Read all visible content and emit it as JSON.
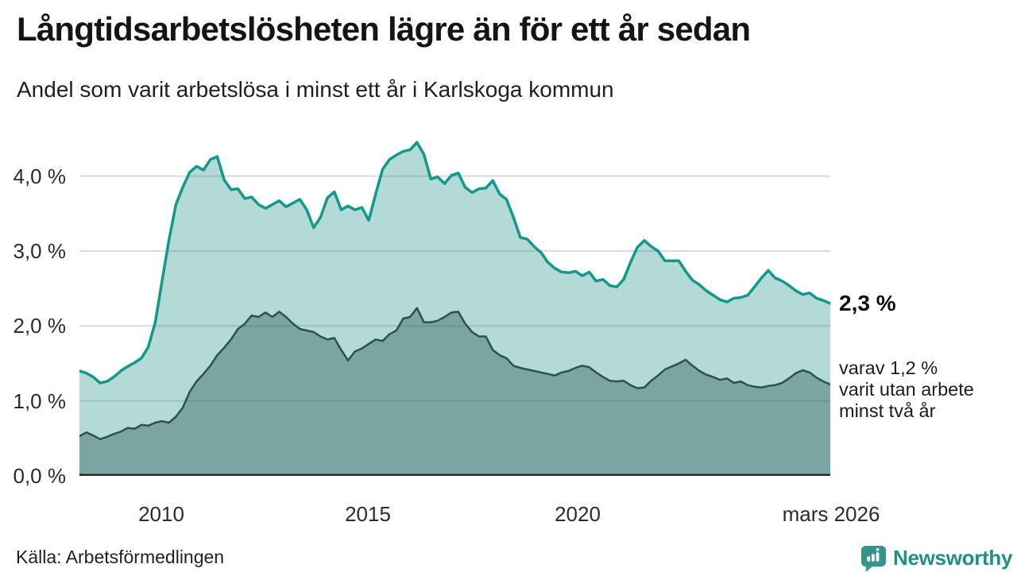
{
  "header": {
    "title": "Långtidsarbetslösheten lägre än för ett år sedan",
    "subtitle": "Andel som varit arbetslösa i minst ett år i Karlskoga kommun"
  },
  "annotation": {
    "latest_total_label": "2,3 %",
    "detail_lines": [
      "varav 1,2 %",
      "varit utan arbete",
      "minst två år"
    ]
  },
  "footer": {
    "source": "Källa: Arbetsförmedlingen",
    "logo_text": "Newsworthy"
  },
  "colors": {
    "accent_teal_line": "#12998b",
    "light_area_fill": "rgba(18,140,128,0.32)",
    "dark_slate_line": "#2f4f52",
    "dark_area_fill": "rgba(38,86,80,0.40)",
    "grid": "#dcdcdc",
    "axis": "#2b2b2b",
    "logo_icon": "#35948a",
    "logo_text": "#1d9186"
  },
  "chart_data": {
    "type": "area",
    "title": "Långtidsarbetslösheten lägre än för ett år sedan",
    "subtitle": "Andel som varit arbetslösa i minst ett år i Karlskoga kommun",
    "x_start_year": 2008.0,
    "x_end_year": 2026.17,
    "x_note": "values sampled every 2 months, read from plot",
    "ylim": [
      0,
      4.6
    ],
    "grid": "horizontal",
    "legend_position": "none",
    "yticks": [
      {
        "value": 0,
        "label": "0,0 %"
      },
      {
        "value": 1,
        "label": "1,0 %"
      },
      {
        "value": 2,
        "label": "2,0 %"
      },
      {
        "value": 3,
        "label": "3,0 %"
      },
      {
        "value": 4,
        "label": "4,0 %"
      }
    ],
    "xticks": [
      {
        "year": 2010,
        "label": "2010"
      },
      {
        "year": 2015,
        "label": "2015"
      },
      {
        "year": 2020,
        "label": "2020"
      },
      {
        "year": 2026.17,
        "label": "mars 2026"
      }
    ],
    "series": [
      {
        "name": "Andel arbetslösa minst ett år",
        "latest_value_pct": 2.3,
        "line_color": "#12998b",
        "line_width": 3.5,
        "fill_color": "rgba(18,140,128,0.32)",
        "values": [
          1.4,
          1.37,
          1.32,
          1.24,
          1.26,
          1.32,
          1.4,
          1.46,
          1.51,
          1.57,
          1.72,
          2.05,
          2.6,
          3.15,
          3.62,
          3.85,
          4.05,
          4.13,
          4.08,
          4.22,
          4.26,
          3.95,
          3.82,
          3.83,
          3.7,
          3.72,
          3.62,
          3.57,
          3.62,
          3.67,
          3.59,
          3.64,
          3.69,
          3.55,
          3.31,
          3.45,
          3.71,
          3.79,
          3.55,
          3.6,
          3.55,
          3.58,
          3.41,
          3.76,
          4.09,
          4.22,
          4.28,
          4.33,
          4.35,
          4.45,
          4.29,
          3.96,
          3.99,
          3.9,
          4.01,
          4.04,
          3.85,
          3.78,
          3.83,
          3.84,
          3.94,
          3.76,
          3.69,
          3.45,
          3.18,
          3.16,
          3.06,
          2.98,
          2.85,
          2.77,
          2.72,
          2.71,
          2.73,
          2.67,
          2.72,
          2.6,
          2.62,
          2.54,
          2.52,
          2.62,
          2.85,
          3.05,
          3.14,
          3.06,
          3.0,
          2.87,
          2.87,
          2.87,
          2.73,
          2.61,
          2.55,
          2.47,
          2.41,
          2.35,
          2.32,
          2.37,
          2.38,
          2.41,
          2.52,
          2.64,
          2.74,
          2.64,
          2.6,
          2.54,
          2.47,
          2.42,
          2.44,
          2.37,
          2.34,
          2.3
        ]
      },
      {
        "name": "Andel utan arbete minst två år",
        "latest_value_pct": 1.2,
        "line_color": "#2f4f52",
        "line_width": 2.5,
        "fill_color": "rgba(38,86,80,0.40)",
        "values": [
          0.53,
          0.58,
          0.54,
          0.49,
          0.52,
          0.56,
          0.59,
          0.64,
          0.63,
          0.68,
          0.67,
          0.71,
          0.73,
          0.71,
          0.79,
          0.91,
          1.12,
          1.26,
          1.36,
          1.47,
          1.61,
          1.71,
          1.82,
          1.96,
          2.03,
          2.14,
          2.12,
          2.18,
          2.12,
          2.19,
          2.12,
          2.03,
          1.96,
          1.94,
          1.92,
          1.86,
          1.82,
          1.84,
          1.68,
          1.54,
          1.66,
          1.7,
          1.76,
          1.82,
          1.8,
          1.89,
          1.94,
          2.1,
          2.12,
          2.24,
          2.05,
          2.05,
          2.07,
          2.12,
          2.18,
          2.19,
          2.03,
          1.92,
          1.86,
          1.86,
          1.68,
          1.61,
          1.57,
          1.47,
          1.44,
          1.42,
          1.4,
          1.38,
          1.36,
          1.34,
          1.38,
          1.4,
          1.44,
          1.47,
          1.45,
          1.38,
          1.32,
          1.27,
          1.26,
          1.27,
          1.21,
          1.17,
          1.18,
          1.27,
          1.34,
          1.42,
          1.46,
          1.5,
          1.55,
          1.47,
          1.4,
          1.35,
          1.32,
          1.28,
          1.3,
          1.24,
          1.26,
          1.21,
          1.19,
          1.18,
          1.2,
          1.21,
          1.24,
          1.3,
          1.37,
          1.41,
          1.38,
          1.31,
          1.26,
          1.22
        ]
      }
    ]
  }
}
